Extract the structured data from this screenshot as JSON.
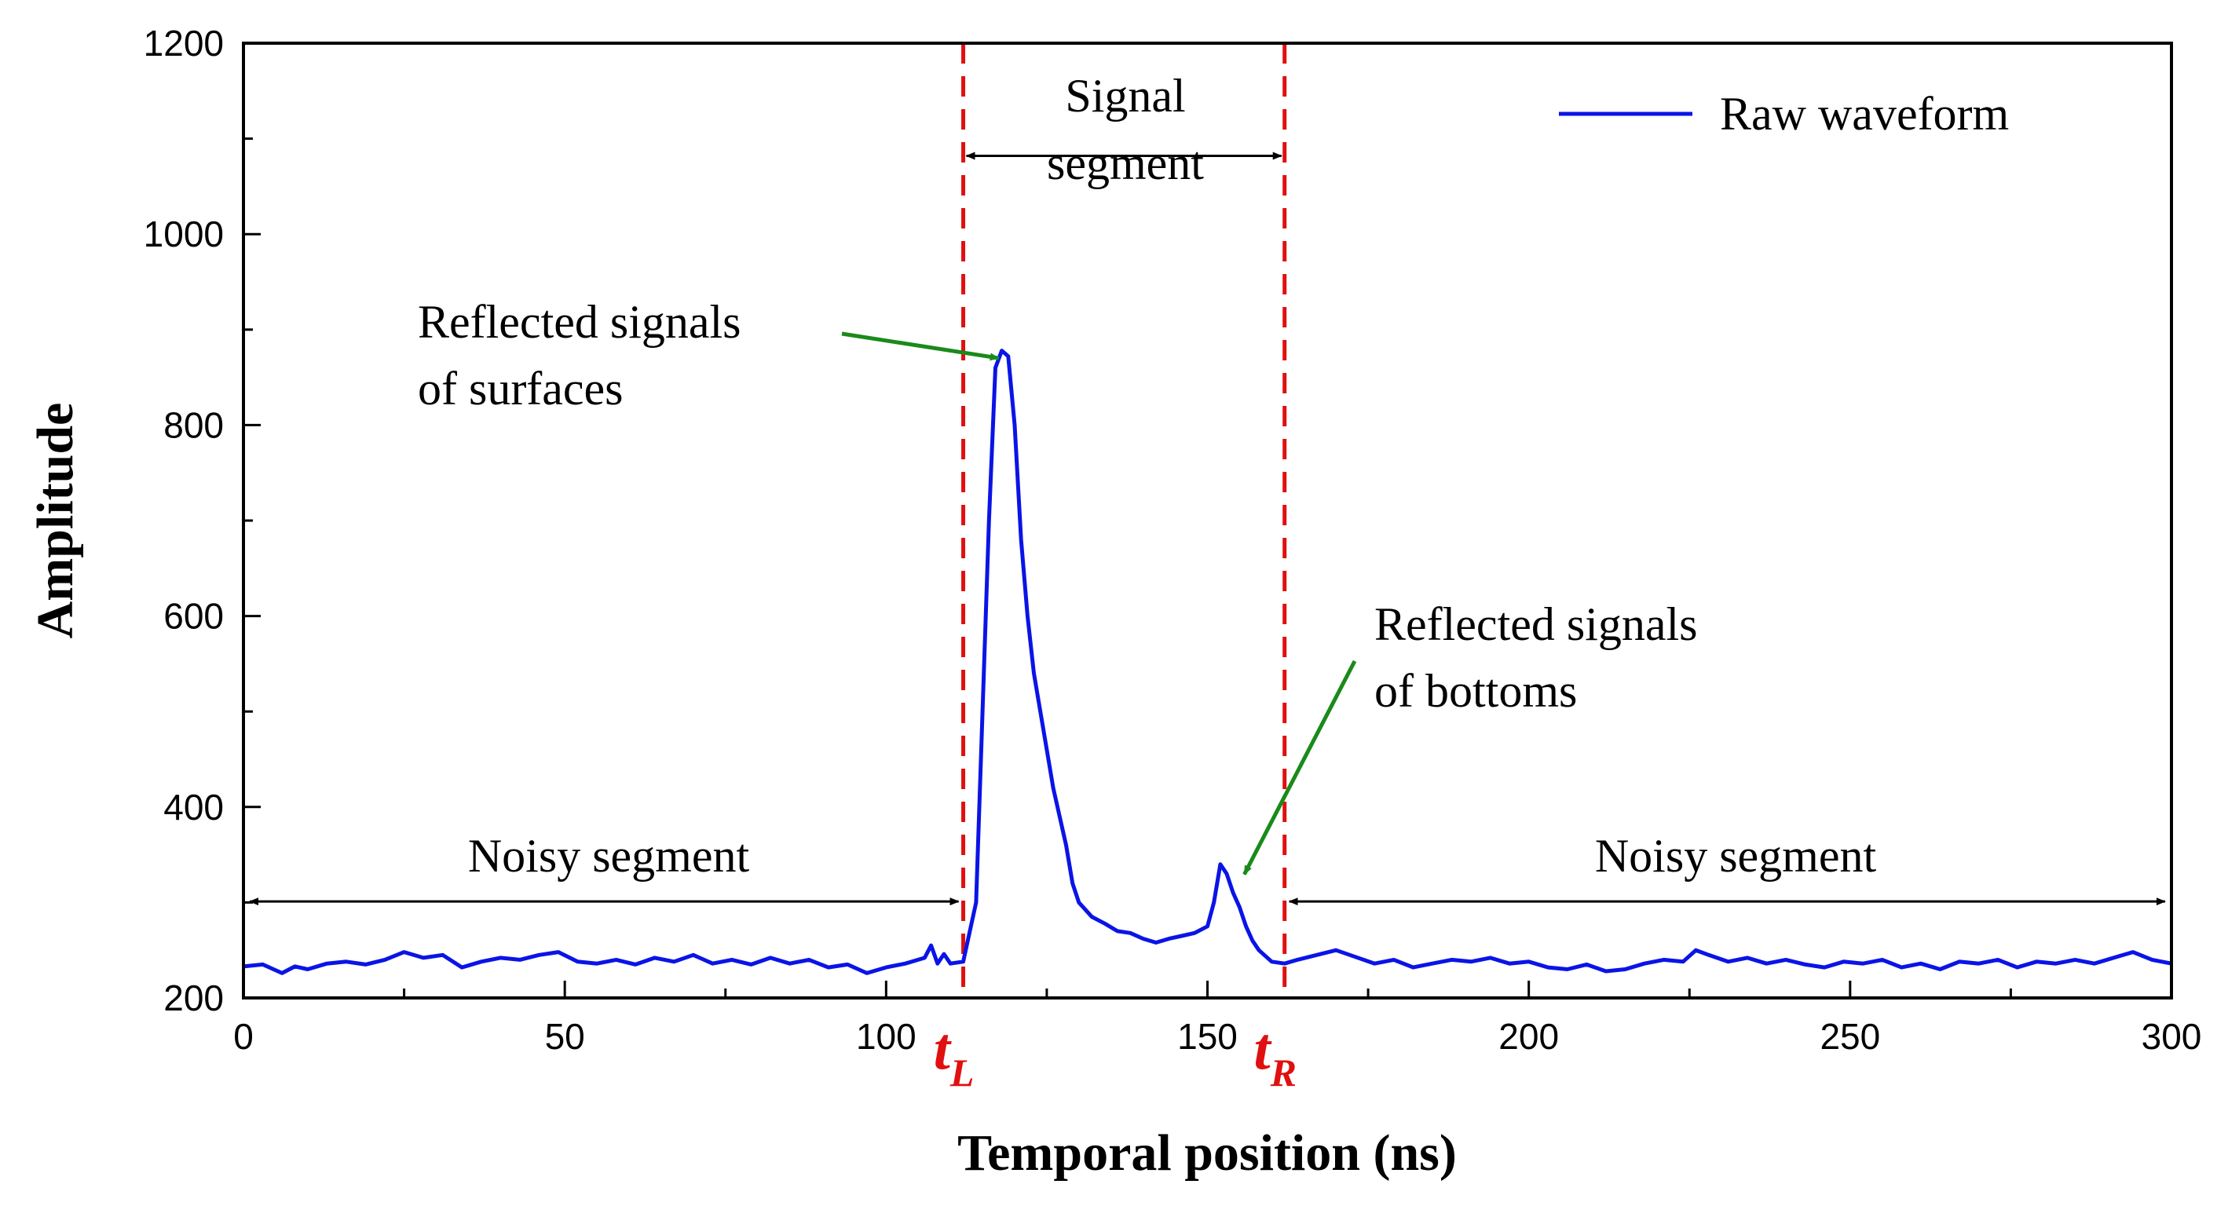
{
  "colors": {
    "series": "#0a14e6",
    "markers": "#e01010",
    "arrows": "#000000",
    "pointers": "#1a8a1a"
  },
  "chart_data": {
    "type": "line",
    "title": "",
    "xlabel": "Temporal position (ns)",
    "ylabel": "Amplitude",
    "xlim": [
      0,
      300
    ],
    "ylim": [
      200,
      1200
    ],
    "xticks": [
      0,
      50,
      100,
      150,
      200,
      250,
      300
    ],
    "yticks": [
      200,
      400,
      600,
      800,
      1000,
      1200
    ],
    "legend": {
      "position": "top-right",
      "entries": [
        "Raw waveform"
      ]
    },
    "series": [
      {
        "name": "Raw waveform",
        "x": [
          0,
          3,
          6,
          8,
          10,
          13,
          16,
          19,
          22,
          25,
          28,
          31,
          34,
          37,
          40,
          43,
          46,
          49,
          52,
          55,
          58,
          61,
          64,
          67,
          70,
          73,
          76,
          79,
          82,
          85,
          88,
          91,
          94,
          97,
          100,
          103,
          106,
          107,
          108,
          109,
          110,
          112,
          114,
          115,
          116,
          117,
          118,
          119,
          120,
          121,
          122,
          123,
          124,
          125,
          126,
          127,
          128,
          129,
          130,
          132,
          134,
          136,
          138,
          140,
          142,
          144,
          146,
          148,
          150,
          151,
          152,
          153,
          154,
          155,
          156,
          157,
          158,
          160,
          162,
          164,
          167,
          170,
          173,
          176,
          179,
          182,
          185,
          188,
          191,
          194,
          197,
          200,
          203,
          206,
          209,
          212,
          215,
          218,
          221,
          224,
          226,
          228,
          231,
          234,
          237,
          240,
          243,
          246,
          249,
          252,
          255,
          258,
          261,
          264,
          267,
          270,
          273,
          276,
          279,
          282,
          285,
          288,
          291,
          294,
          297,
          300
        ],
        "y": [
          233,
          235,
          226,
          233,
          230,
          236,
          238,
          235,
          240,
          248,
          242,
          245,
          232,
          238,
          242,
          240,
          245,
          248,
          238,
          236,
          240,
          235,
          242,
          238,
          245,
          236,
          240,
          235,
          242,
          236,
          240,
          232,
          235,
          226,
          232,
          236,
          242,
          255,
          236,
          246,
          236,
          238,
          300,
          500,
          700,
          860,
          878,
          872,
          800,
          680,
          600,
          540,
          500,
          460,
          420,
          390,
          360,
          320,
          300,
          285,
          278,
          270,
          268,
          262,
          258,
          262,
          265,
          268,
          275,
          300,
          340,
          330,
          310,
          295,
          275,
          260,
          250,
          238,
          236,
          240,
          245,
          250,
          243,
          236,
          240,
          232,
          236,
          240,
          238,
          242,
          236,
          238,
          232,
          230,
          235,
          228,
          230,
          236,
          240,
          238,
          250,
          245,
          238,
          242,
          236,
          240,
          235,
          232,
          238,
          236,
          240,
          232,
          236,
          230,
          238,
          236,
          240,
          232,
          238,
          236,
          240,
          236,
          242,
          248,
          240,
          236
        ]
      }
    ],
    "markers": [
      {
        "name": "t_L",
        "x": 112,
        "base": "t",
        "sub": "L"
      },
      {
        "name": "t_R",
        "x": 162,
        "base": "t",
        "sub": "R"
      }
    ],
    "annotations": {
      "signal_segment": {
        "lines": [
          "Signal",
          "segment"
        ],
        "x_from": 112,
        "x_to": 162,
        "y": 1082
      },
      "noisy_left": {
        "text": "Noisy segment",
        "x_from": 1,
        "x_to": 112,
        "y": 301
      },
      "noisy_right": {
        "text": "Noisy segment",
        "x_from": 162,
        "x_to": 299,
        "y": 301
      },
      "surfaces": {
        "lines": [
          "Reflected signals",
          "of surfaces"
        ],
        "tip": [
          118.5,
          880
        ]
      },
      "bottoms": {
        "lines": [
          "Reflected signals",
          "of bottoms"
        ],
        "tip": [
          155,
          350
        ]
      }
    }
  }
}
